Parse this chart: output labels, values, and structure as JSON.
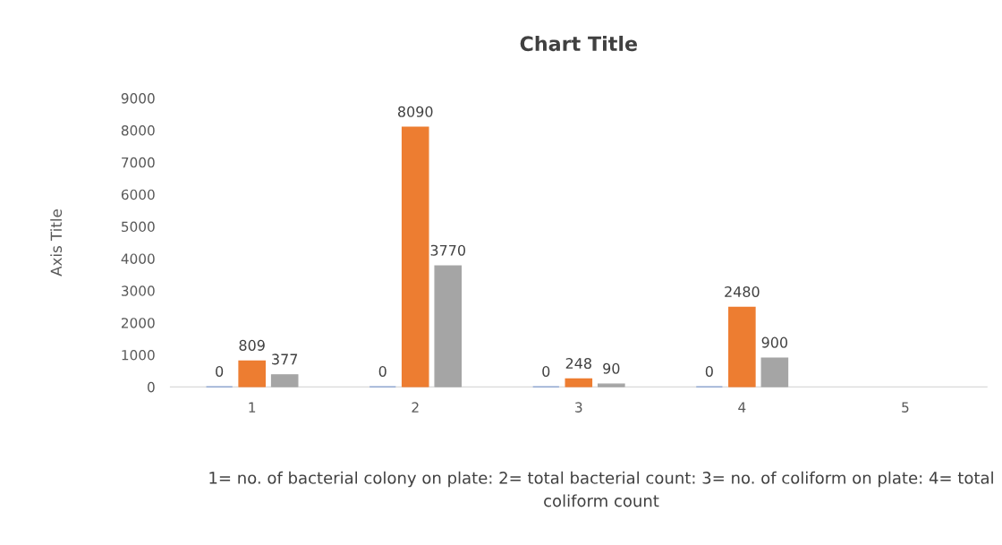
{
  "chart_data": {
    "type": "bar",
    "title": "Chart Title",
    "xlabel": "1= no. of bacterial colony on plate: 2= total bacterial count: 3= no. of coliform on plate: 4= total coliform count",
    "ylabel": "Axis Title",
    "categories": [
      "1",
      "2",
      "3",
      "4",
      "5"
    ],
    "series": [
      {
        "color": "#4472c4",
        "values": [
          0,
          0,
          0,
          0,
          null
        ]
      },
      {
        "color": "#ed7d31",
        "values": [
          809,
          8090,
          248,
          2480,
          null
        ]
      },
      {
        "color": "#a5a5a5",
        "values": [
          377,
          3770,
          90,
          900,
          null
        ]
      }
    ],
    "ylim": [
      0,
      9000
    ],
    "yticks": [
      0,
      1000,
      2000,
      3000,
      4000,
      5000,
      6000,
      7000,
      8000,
      9000
    ],
    "data_labels": true,
    "grid": false,
    "legend": false
  }
}
